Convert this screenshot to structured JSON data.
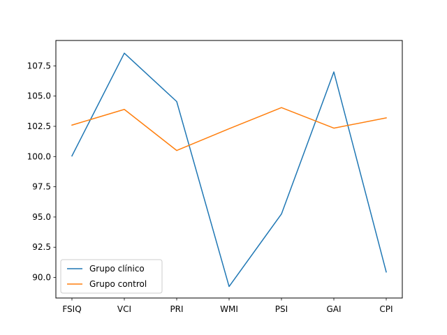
{
  "chart_data": {
    "type": "line",
    "title": "",
    "xlabel": "",
    "ylabel": "",
    "categories": [
      "FSIQ",
      "VCI",
      "PRI",
      "WMI",
      "PSI",
      "GAI",
      "CPI"
    ],
    "series": [
      {
        "name": "Grupo clínico",
        "color": "#1f77b4",
        "values": [
          100.05,
          108.55,
          104.55,
          89.25,
          95.25,
          107.0,
          90.45
        ]
      },
      {
        "name": "Grupo control",
        "color": "#ff7f0e",
        "values": [
          102.6,
          103.9,
          100.5,
          102.3,
          104.05,
          102.35,
          103.2
        ]
      }
    ],
    "ylim": [
      88.3,
      109.6
    ],
    "yticks": [
      "90.0",
      "92.5",
      "95.0",
      "97.5",
      "100.0",
      "102.5",
      "105.0",
      "107.5"
    ],
    "grid": false,
    "legend_position": "lower-left"
  }
}
